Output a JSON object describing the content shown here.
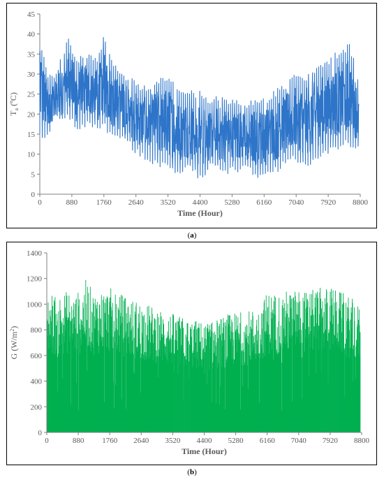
{
  "chart_data": [
    {
      "id": "a",
      "type": "line",
      "ylabel_main": "T",
      "ylabel_sub": "a",
      "ylabel_unit": " (ºC)",
      "xlabel": "Time (Hour)",
      "xlim": [
        0,
        8800
      ],
      "ylim": [
        0,
        45
      ],
      "xticks": [
        0,
        880,
        1760,
        2640,
        3520,
        4400,
        5280,
        6160,
        7040,
        7920,
        8800
      ],
      "yticks": [
        0,
        5,
        10,
        15,
        20,
        25,
        30,
        35,
        40,
        45
      ],
      "color": "#2E75C9",
      "series_envelope": {
        "x": [
          0,
          200,
          400,
          600,
          800,
          1000,
          1200,
          1400,
          1600,
          1760,
          2000,
          2200,
          2400,
          2640,
          2900,
          3200,
          3520,
          3800,
          4100,
          4400,
          4700,
          5000,
          5280,
          5600,
          5900,
          6160,
          6450,
          6750,
          7040,
          7300,
          7600,
          7920,
          8200,
          8500,
          8760
        ],
        "upper": [
          40,
          31,
          30,
          35,
          40,
          34,
          36,
          35,
          34,
          40,
          33,
          31,
          30,
          28,
          27,
          29,
          30,
          27,
          26,
          26,
          24,
          25,
          24,
          23,
          24,
          24,
          26,
          28,
          31,
          30,
          32,
          34,
          36,
          38,
          29
        ],
        "lower": [
          14,
          13,
          18,
          17,
          19,
          15,
          16,
          17,
          15,
          16,
          14,
          13,
          12,
          10,
          8,
          7,
          6,
          5,
          6,
          3,
          6,
          5,
          5,
          6,
          4,
          4,
          5,
          7,
          8,
          6,
          8,
          10,
          11,
          12,
          10
        ]
      }
    },
    {
      "id": "b",
      "type": "bar",
      "ylabel_main": "G (W/m",
      "ylabel_sup": "2",
      "ylabel_end": ")",
      "xlabel": "Time (Hour)",
      "xlim": [
        0,
        8800
      ],
      "ylim": [
        0,
        1400
      ],
      "xticks": [
        0,
        880,
        1760,
        2640,
        3520,
        4400,
        5280,
        6160,
        7040,
        7920,
        8800
      ],
      "yticks": [
        0,
        200,
        400,
        600,
        800,
        1000,
        1200,
        1400
      ],
      "color": "#00B050",
      "series_envelope": {
        "x": [
          0,
          300,
          600,
          900,
          1100,
          1300,
          1500,
          1760,
          2000,
          2300,
          2640,
          2900,
          3200,
          3520,
          3800,
          4100,
          4400,
          4700,
          5000,
          5280,
          5600,
          5900,
          6160,
          6400,
          6700,
          7040,
          7300,
          7600,
          7920,
          8200,
          8500,
          8760
        ],
        "upper": [
          1100,
          1080,
          1110,
          1100,
          1200,
          1090,
          1120,
          1130,
          1090,
          1050,
          1020,
          990,
          960,
          930,
          900,
          880,
          860,
          880,
          920,
          940,
          950,
          980,
          1100,
          1090,
          1110,
          1120,
          1100,
          1130,
          1140,
          1100,
          1050,
          980
        ]
      }
    }
  ],
  "captions": {
    "a": "a",
    "b": "b"
  }
}
